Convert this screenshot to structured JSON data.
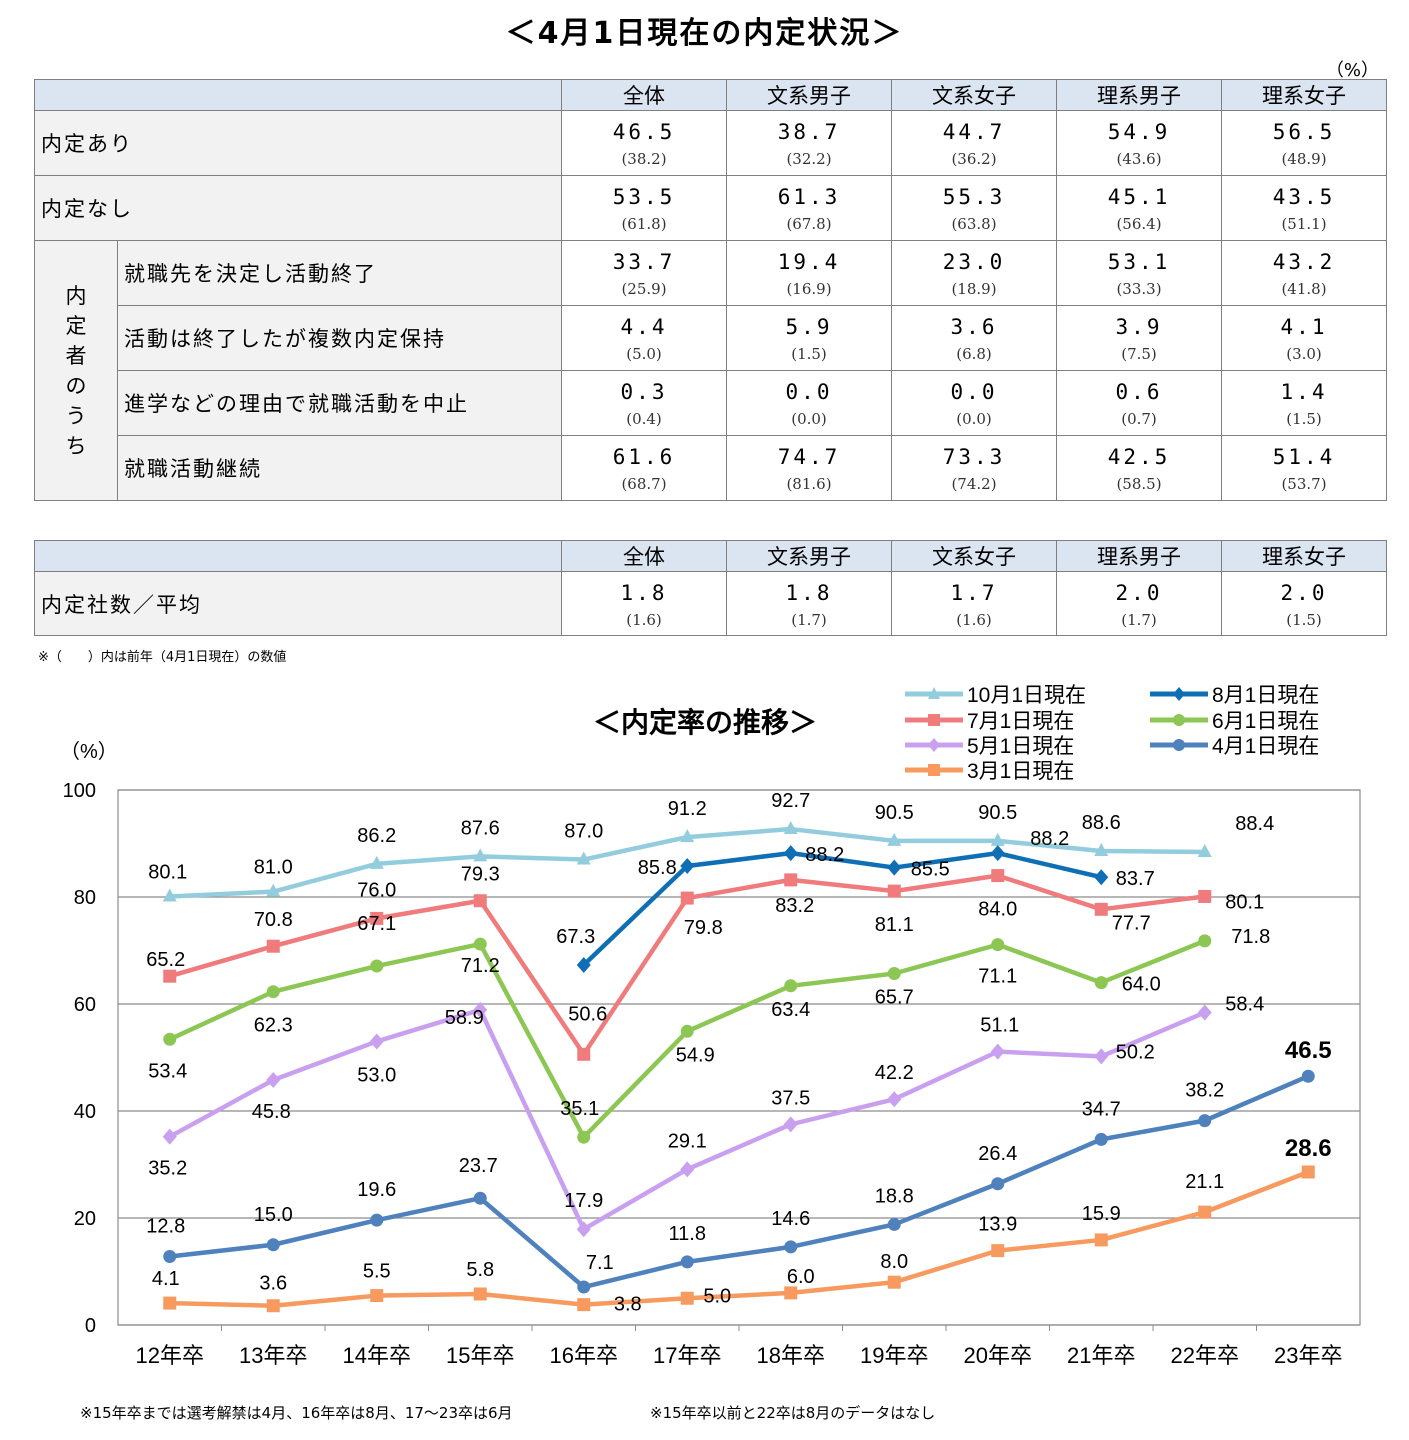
{
  "table": {
    "title": "＜4月1日現在の内定状況＞",
    "unit": "（%）",
    "columns": [
      "全体",
      "文系男子",
      "文系女子",
      "理系男子",
      "理系女子"
    ],
    "rows": [
      {
        "label": "内定あり",
        "values": [
          "46.5",
          "38.7",
          "44.7",
          "54.9",
          "56.5"
        ],
        "prev": [
          "(38.2)",
          "(32.2)",
          "(36.2)",
          "(43.6)",
          "(48.9)"
        ]
      },
      {
        "label": "内定なし",
        "values": [
          "53.5",
          "61.3",
          "55.3",
          "45.1",
          "43.5"
        ],
        "prev": [
          "(61.8)",
          "(67.8)",
          "(63.8)",
          "(56.4)",
          "(51.1)"
        ]
      }
    ],
    "group_label": "内定者のうち",
    "group_rows": [
      {
        "label": "就職先を決定し活動終了",
        "values": [
          "33.7",
          "19.4",
          "23.0",
          "53.1",
          "43.2"
        ],
        "prev": [
          "(25.9)",
          "(16.9)",
          "(18.9)",
          "(33.3)",
          "(41.8)"
        ]
      },
      {
        "label": "活動は終了したが複数内定保持",
        "values": [
          "4.4",
          "5.9",
          "3.6",
          "3.9",
          "4.1"
        ],
        "prev": [
          "(5.0)",
          "(1.5)",
          "(6.8)",
          "(7.5)",
          "(3.0)"
        ]
      },
      {
        "label": "進学などの理由で就職活動を中止",
        "values": [
          "0.3",
          "0.0",
          "0.0",
          "0.6",
          "1.4"
        ],
        "prev": [
          "(0.4)",
          "(0.0)",
          "(0.0)",
          "(0.7)",
          "(1.5)"
        ]
      },
      {
        "label": "就職活動継続",
        "values": [
          "61.6",
          "74.7",
          "73.3",
          "42.5",
          "51.4"
        ],
        "prev": [
          "(68.7)",
          "(81.6)",
          "(74.2)",
          "(58.5)",
          "(53.7)"
        ]
      }
    ]
  },
  "table2": {
    "label": "内定社数／平均",
    "values": [
      "1.8",
      "1.8",
      "1.7",
      "2.0",
      "2.0"
    ],
    "prev": [
      "(1.6)",
      "(1.7)",
      "(1.6)",
      "(1.7)",
      "(1.5)"
    ]
  },
  "note1": "※（　　）内は前年（4月1日現在）の数値",
  "note2_left": "※15年卒までは選考解禁は4月、16年卒は8月、17～23卒は6月",
  "note2_right": "※15年卒以前と22卒は8月のデータはなし",
  "chart_data": {
    "type": "line",
    "title": "＜内定率の推移＞",
    "ylabel": "（%）",
    "ylim": [
      0,
      100
    ],
    "yticks": [
      0,
      20,
      40,
      60,
      80,
      100
    ],
    "grid": true,
    "legend_position": "top-right",
    "categories": [
      "12年卒",
      "13年卒",
      "14年卒",
      "15年卒",
      "16年卒",
      "17年卒",
      "18年卒",
      "19年卒",
      "20年卒",
      "21年卒",
      "22年卒",
      "23年卒"
    ],
    "series": [
      {
        "name": "10月1日現在",
        "color": "#93cddd",
        "marker": "triangle",
        "values": [
          80.1,
          81.0,
          86.2,
          87.6,
          87.0,
          91.2,
          92.7,
          90.5,
          90.5,
          88.6,
          88.4,
          null
        ]
      },
      {
        "name": "8月1日現在",
        "color": "#0f6fb5",
        "marker": "diamond",
        "values": [
          null,
          null,
          null,
          null,
          67.3,
          85.8,
          88.2,
          85.5,
          88.2,
          83.7,
          null,
          null
        ]
      },
      {
        "name": "7月1日現在",
        "color": "#ef7b7d",
        "marker": "square",
        "values": [
          65.2,
          70.8,
          76.0,
          79.3,
          50.6,
          79.8,
          83.2,
          81.1,
          84.0,
          77.7,
          80.1,
          null
        ]
      },
      {
        "name": "6月1日現在",
        "color": "#8cc653",
        "marker": "circle",
        "values": [
          53.4,
          62.3,
          67.1,
          71.2,
          35.1,
          54.9,
          63.4,
          65.7,
          71.1,
          64.0,
          71.8,
          null
        ]
      },
      {
        "name": "5月1日現在",
        "color": "#c9a0f0",
        "marker": "diamond",
        "values": [
          35.2,
          45.8,
          53.0,
          58.9,
          17.9,
          29.1,
          37.5,
          42.2,
          51.1,
          50.2,
          58.4,
          null
        ]
      },
      {
        "name": "4月1日現在",
        "color": "#4f81bd",
        "marker": "circle",
        "values": [
          12.8,
          15.0,
          19.6,
          23.7,
          7.1,
          11.8,
          14.6,
          18.8,
          26.4,
          34.7,
          38.2,
          46.5
        ]
      },
      {
        "name": "3月1日現在",
        "color": "#f79a5f",
        "marker": "square",
        "values": [
          4.1,
          3.6,
          5.5,
          5.8,
          3.8,
          5.0,
          6.0,
          8.0,
          13.9,
          15.9,
          21.1,
          28.6
        ]
      }
    ],
    "annotations": [
      {
        "series": "4月1日現在",
        "category": "23年卒",
        "text": "46.5",
        "bold": true
      },
      {
        "series": "3月1日現在",
        "category": "23年卒",
        "text": "28.6",
        "bold": true
      }
    ]
  }
}
